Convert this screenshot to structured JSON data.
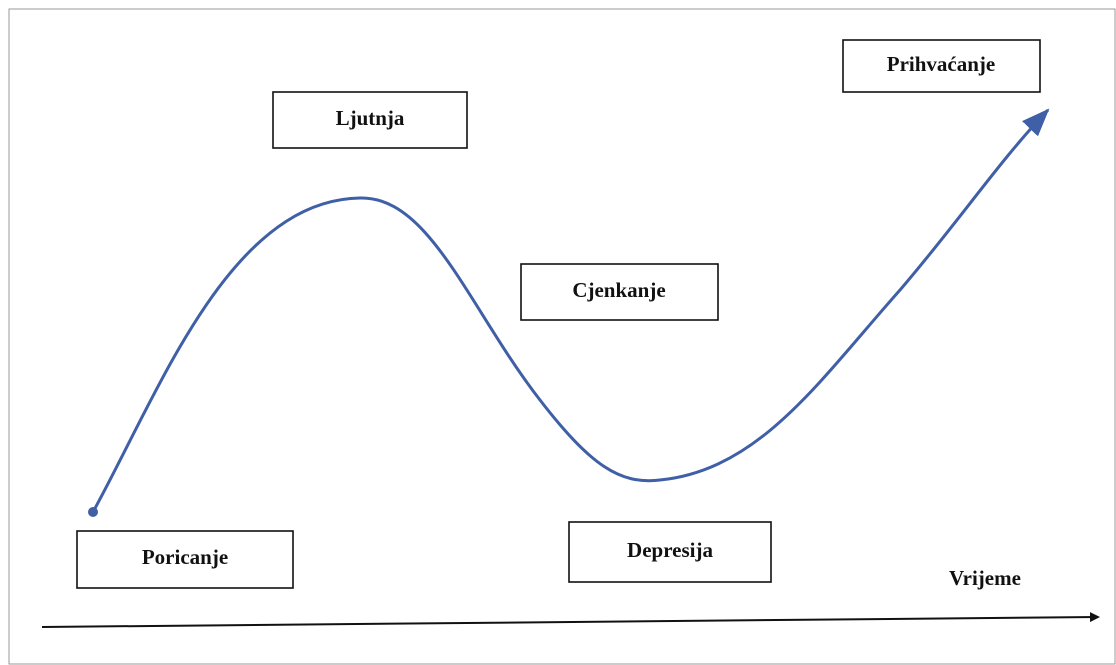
{
  "nodes": [
    {
      "label": "Poricanje"
    },
    {
      "label": "Ljutnja"
    },
    {
      "label": "Cjenkanje"
    },
    {
      "label": "Depresija"
    },
    {
      "label": "Prihvaćanje"
    }
  ],
  "axis_label": "Vrijeme"
}
